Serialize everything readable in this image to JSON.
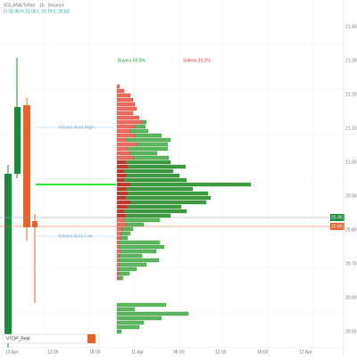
{
  "header": {
    "symbol": "SOLANA/Tether · 1h · Binance",
    "ohlc": "O 20.95 H 21.06 L 20.79 C 20.83"
  },
  "profile": {
    "buyers": "Buyers 69.8%",
    "sellers": "Sellers 30.2%",
    "vah": "Volume Area High",
    "val": "Volume Area Low",
    "indicator": "VTOP_Rekt",
    "blocks": [
      {
        "rows": [
          [
            3,
            0
          ],
          [
            8,
            0
          ],
          [
            15,
            0
          ],
          [
            18,
            0
          ],
          [
            20,
            0
          ],
          [
            22,
            0
          ],
          [
            18,
            0
          ],
          [
            25,
            0
          ],
          [
            28,
            5
          ],
          [
            20,
            12
          ],
          [
            15,
            20
          ],
          [
            20,
            30
          ],
          [
            10,
            50
          ],
          [
            22,
            35
          ],
          [
            12,
            45
          ],
          [
            15,
            30
          ],
          [
            18,
            40
          ],
          [
            10,
            50
          ],
          [
            12,
            65
          ],
          [
            8,
            55
          ],
          [
            10,
            60
          ],
          [
            8,
            70
          ],
          [
            15,
            135
          ],
          [
            10,
            75
          ],
          [
            12,
            90
          ],
          [
            10,
            95
          ],
          [
            15,
            85
          ],
          [
            12,
            60
          ],
          [
            8,
            70
          ],
          [
            10,
            50
          ],
          [
            8,
            40
          ],
          [
            10,
            20
          ],
          [
            6,
            12
          ],
          [
            5,
            10
          ],
          [
            4,
            8
          ],
          [
            3,
            45
          ],
          [
            3,
            50
          ],
          [
            4,
            40
          ],
          [
            3,
            25
          ],
          [
            2,
            45
          ],
          [
            3,
            30
          ],
          [
            2,
            20
          ],
          [
            2,
            12
          ],
          [
            2,
            5
          ]
        ]
      },
      {
        "rows": [
          [
            0,
            55
          ],
          [
            0,
            20
          ],
          [
            0,
            80
          ],
          [
            0,
            50
          ],
          [
            0,
            30
          ],
          [
            0,
            25
          ],
          [
            0,
            5
          ]
        ]
      }
    ]
  },
  "price": {
    "line1": "20.95",
    "line2": "20.83",
    "ticks": [
      "21.40",
      "21.30",
      "21.20",
      "21.10",
      "21.00",
      "20.90",
      "20.80",
      "20.70",
      "20.60",
      "20.50"
    ]
  },
  "time": {
    "ticks": [
      "10 Apr",
      "12:00",
      "18:00",
      "11 Apr",
      "06:00",
      "12:00",
      "18:00",
      "12 Apr"
    ]
  }
}
